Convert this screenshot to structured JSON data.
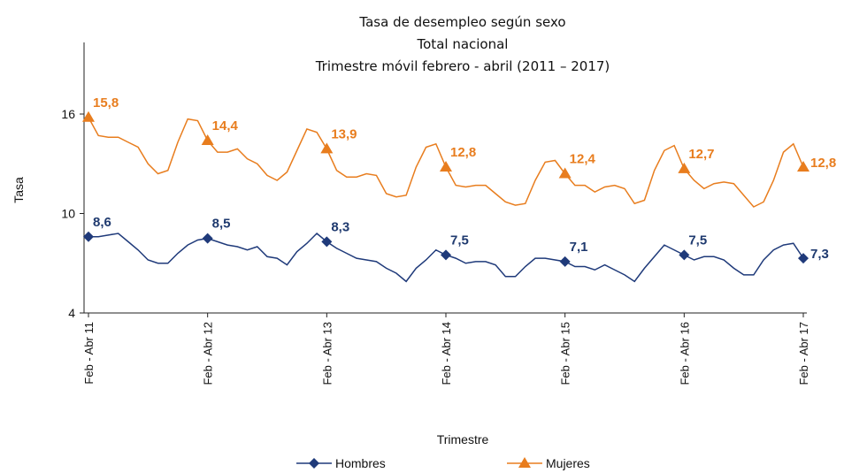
{
  "chart_data": {
    "type": "line",
    "title": "Tasa de desempleo según sexo",
    "subtitle": [
      "Total nacional",
      "Trimestre móvil febrero - abril (2011 – 2017)"
    ],
    "x_label": "Trimestre",
    "y_label": "Tasa",
    "categories": [
      "Feb - Abr 11",
      null,
      null,
      null,
      null,
      null,
      null,
      null,
      null,
      null,
      null,
      null,
      "Feb - Abr 12",
      null,
      null,
      null,
      null,
      null,
      null,
      null,
      null,
      null,
      null,
      null,
      "Feb - Abr 13",
      null,
      null,
      null,
      null,
      null,
      null,
      null,
      null,
      null,
      null,
      null,
      "Feb - Abr 14",
      null,
      null,
      null,
      null,
      null,
      null,
      null,
      null,
      null,
      null,
      null,
      "Feb - Abr 15",
      null,
      null,
      null,
      null,
      null,
      null,
      null,
      null,
      null,
      null,
      null,
      "Feb - Abr 16",
      null,
      null,
      null,
      null,
      null,
      null,
      null,
      null,
      null,
      null,
      null,
      "Feb - Abr 17"
    ],
    "series": [
      {
        "name": "Hombres",
        "color": "#1f3a7a",
        "marker": "diamond",
        "values": [
          8.6,
          8.6,
          8.7,
          8.8,
          8.3,
          7.8,
          7.2,
          7.0,
          7.0,
          7.6,
          8.1,
          8.4,
          8.5,
          8.3,
          8.1,
          8.0,
          7.8,
          8.0,
          7.4,
          7.3,
          6.9,
          7.7,
          8.2,
          8.8,
          8.3,
          7.9,
          7.6,
          7.3,
          7.2,
          7.1,
          6.7,
          6.4,
          5.9,
          6.7,
          7.2,
          7.8,
          7.5,
          7.3,
          7.0,
          7.1,
          7.1,
          6.9,
          6.2,
          6.2,
          6.8,
          7.3,
          7.3,
          7.2,
          7.1,
          6.8,
          6.8,
          6.6,
          6.9,
          6.6,
          6.3,
          5.9,
          6.7,
          7.4,
          8.1,
          7.8,
          7.5,
          7.2,
          7.4,
          7.4,
          7.2,
          6.7,
          6.3,
          6.3,
          7.2,
          7.8,
          8.1,
          8.2,
          7.3
        ],
        "value_labels": [
          "8,6",
          null,
          null,
          null,
          null,
          null,
          null,
          null,
          null,
          null,
          null,
          null,
          "8,5",
          null,
          null,
          null,
          null,
          null,
          null,
          null,
          null,
          null,
          null,
          null,
          "8,3",
          null,
          null,
          null,
          null,
          null,
          null,
          null,
          null,
          null,
          null,
          null,
          "7,5",
          null,
          null,
          null,
          null,
          null,
          null,
          null,
          null,
          null,
          null,
          null,
          "7,1",
          null,
          null,
          null,
          null,
          null,
          null,
          null,
          null,
          null,
          null,
          null,
          "7,5",
          null,
          null,
          null,
          null,
          null,
          null,
          null,
          null,
          null,
          null,
          null,
          "7,3"
        ]
      },
      {
        "name": "Mujeres",
        "color": "#e87d1e",
        "marker": "triangle",
        "values": [
          15.8,
          14.7,
          14.6,
          14.6,
          14.3,
          14.0,
          13.0,
          12.4,
          12.6,
          14.3,
          15.7,
          15.6,
          14.4,
          13.7,
          13.7,
          13.9,
          13.3,
          13.0,
          12.3,
          12.0,
          12.5,
          13.8,
          15.1,
          14.9,
          13.9,
          12.6,
          12.2,
          12.2,
          12.4,
          12.3,
          11.2,
          11.0,
          11.1,
          12.8,
          14.0,
          14.2,
          12.8,
          11.7,
          11.6,
          11.7,
          11.7,
          11.2,
          10.7,
          10.5,
          10.6,
          12.0,
          13.1,
          13.2,
          12.4,
          11.7,
          11.7,
          11.3,
          11.6,
          11.7,
          11.5,
          10.6,
          10.8,
          12.6,
          13.8,
          14.1,
          12.7,
          12.0,
          11.5,
          11.8,
          11.9,
          11.8,
          11.1,
          10.4,
          10.7,
          12.0,
          13.7,
          14.2,
          12.8
        ],
        "value_labels": [
          "15,8",
          null,
          null,
          null,
          null,
          null,
          null,
          null,
          null,
          null,
          null,
          null,
          "14,4",
          null,
          null,
          null,
          null,
          null,
          null,
          null,
          null,
          null,
          null,
          null,
          "13,9",
          null,
          null,
          null,
          null,
          null,
          null,
          null,
          null,
          null,
          null,
          null,
          "12,8",
          null,
          null,
          null,
          null,
          null,
          null,
          null,
          null,
          null,
          null,
          null,
          "12,4",
          null,
          null,
          null,
          null,
          null,
          null,
          null,
          null,
          null,
          null,
          null,
          "12,7",
          null,
          null,
          null,
          null,
          null,
          null,
          null,
          null,
          null,
          null,
          null,
          "12,8"
        ]
      }
    ],
    "ylim": [
      4,
      20
    ],
    "yticks": [
      4,
      10,
      16
    ],
    "grid": false,
    "legend": "bottom"
  }
}
